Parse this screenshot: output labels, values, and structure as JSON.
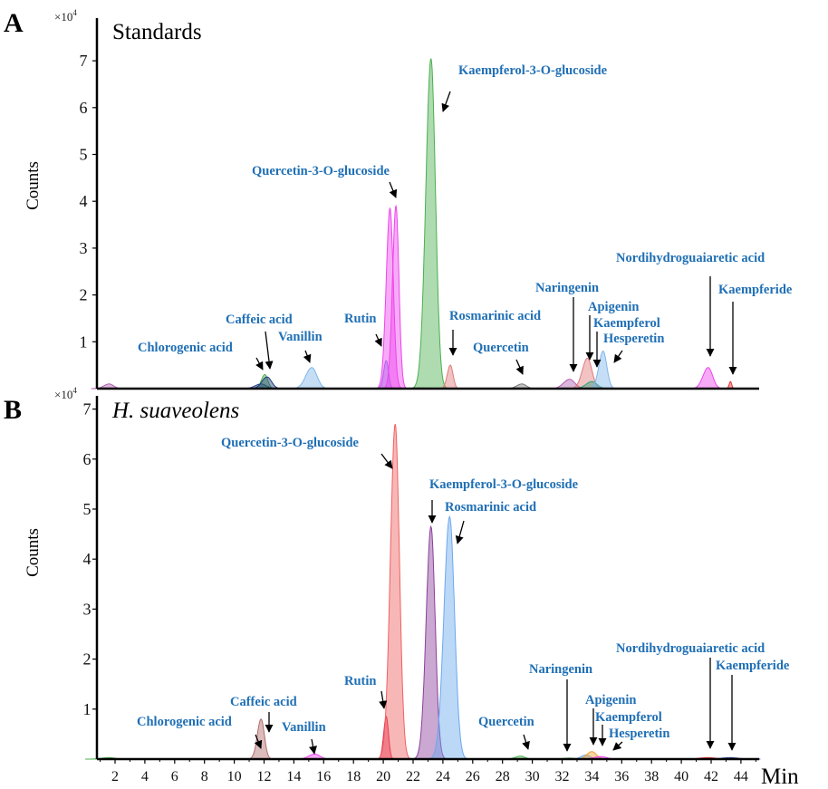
{
  "chart_data": [
    {
      "type": "area",
      "panel_letter": "A",
      "title": "Standards",
      "ylabel": "Counts",
      "yunit": "×10",
      "yunit_exp": "4",
      "xlabel": "Min",
      "xlim": [
        0.7,
        45.3
      ],
      "ylim": [
        0,
        7.6
      ],
      "yticks": [
        "1",
        "2",
        "3",
        "4",
        "5",
        "6",
        "7"
      ],
      "xticks": [
        "2",
        "4",
        "6",
        "8",
        "10",
        "12",
        "14",
        "16",
        "18",
        "20",
        "22",
        "24",
        "26",
        "28",
        "30",
        "32",
        "34",
        "36",
        "38",
        "40",
        "42",
        "44"
      ],
      "peaks": [
        {
          "rt": 1.6,
          "height": 0.1,
          "width": 0.3,
          "color": "#b05fb0"
        },
        {
          "rt": 11.8,
          "height": 0.1,
          "width": 0.35,
          "color": "#2a3f8f"
        },
        {
          "rt": 12.05,
          "height": 0.3,
          "width": 0.2,
          "color": "#4caf50"
        },
        {
          "rt": 12.2,
          "height": 0.25,
          "width": 0.3,
          "color": "#1f3a7a"
        },
        {
          "rt": 15.2,
          "height": 0.45,
          "width": 0.35,
          "color": "#7fb5ea"
        },
        {
          "rt": 20.2,
          "height": 0.6,
          "width": 0.15,
          "color": "#7b7bea"
        },
        {
          "rt": 20.45,
          "height": 3.85,
          "width": 0.22,
          "color": "#ee44ee"
        },
        {
          "rt": 20.85,
          "height": 3.9,
          "width": 0.2,
          "color": "#ee44ee"
        },
        {
          "rt": 23.2,
          "height": 7.05,
          "width": 0.3,
          "color": "#4caf50"
        },
        {
          "rt": 24.5,
          "height": 0.5,
          "width": 0.18,
          "color": "#e07b7b"
        },
        {
          "rt": 29.3,
          "height": 0.1,
          "width": 0.3,
          "color": "#777777"
        },
        {
          "rt": 32.5,
          "height": 0.2,
          "width": 0.35,
          "color": "#b05fb0"
        },
        {
          "rt": 33.7,
          "height": 0.65,
          "width": 0.3,
          "color": "#e07b7b"
        },
        {
          "rt": 34.0,
          "height": 0.15,
          "width": 0.35,
          "color": "#2e9e7a"
        },
        {
          "rt": 34.75,
          "height": 0.8,
          "width": 0.25,
          "color": "#7fb5ea"
        },
        {
          "rt": 41.8,
          "height": 0.45,
          "width": 0.3,
          "color": "#ee44ee"
        },
        {
          "rt": 43.3,
          "height": 0.15,
          "width": 0.08,
          "color": "#e83030"
        }
      ],
      "annotations": [
        "Kaempferol-3-O-glucoside",
        "Quercetin-3-O-glucoside",
        "Rutin",
        "Caffeic acid",
        "Chlorogenic acid",
        "Vanillin",
        "Rosmarinic acid",
        "Quercetin",
        "Naringenin",
        "Apigenin",
        "Kaempferol",
        "Hesperetin",
        "Nordihydroguaiaretic acid",
        "Kaempferide"
      ]
    },
    {
      "type": "area",
      "panel_letter": "B",
      "title": "H. suaveolens",
      "ylabel": "Counts",
      "yunit": "×10",
      "yunit_exp": "4",
      "xlabel": "Min",
      "xlim": [
        0.7,
        45.3
      ],
      "ylim": [
        0,
        7.2
      ],
      "yticks": [
        "1",
        "2",
        "3",
        "4",
        "5",
        "6",
        "7"
      ],
      "xticks": [
        "2",
        "4",
        "6",
        "8",
        "10",
        "12",
        "14",
        "16",
        "18",
        "20",
        "22",
        "24",
        "26",
        "28",
        "30",
        "32",
        "34",
        "36",
        "38",
        "40",
        "42",
        "44"
      ],
      "peaks": [
        {
          "rt": 1.6,
          "height": 0.03,
          "width": 0.4,
          "color": "#4caf50"
        },
        {
          "rt": 11.8,
          "height": 0.8,
          "width": 0.22,
          "color": "#b06a6a"
        },
        {
          "rt": 15.4,
          "height": 0.1,
          "width": 0.35,
          "color": "#ee44ee"
        },
        {
          "rt": 20.2,
          "height": 0.85,
          "width": 0.15,
          "color": "#e0204a"
        },
        {
          "rt": 20.8,
          "height": 6.7,
          "width": 0.28,
          "color": "#f06060"
        },
        {
          "rt": 23.2,
          "height": 4.65,
          "width": 0.28,
          "color": "#8a3f9a"
        },
        {
          "rt": 24.45,
          "height": 4.85,
          "width": 0.33,
          "color": "#6aa8ee"
        },
        {
          "rt": 29.2,
          "height": 0.06,
          "width": 0.3,
          "color": "#4caf50"
        },
        {
          "rt": 32.5,
          "height": 0.02,
          "width": 0.4,
          "color": "#4caf50"
        },
        {
          "rt": 33.6,
          "height": 0.08,
          "width": 0.3,
          "color": "#6aa8ee"
        },
        {
          "rt": 34.0,
          "height": 0.15,
          "width": 0.3,
          "color": "#f0a030"
        },
        {
          "rt": 34.6,
          "height": 0.05,
          "width": 0.4,
          "color": "#ee44ee"
        },
        {
          "rt": 41.8,
          "height": 0.03,
          "width": 0.5,
          "color": "#e83030"
        },
        {
          "rt": 43.3,
          "height": 0.03,
          "width": 0.5,
          "color": "#2a3f8f"
        }
      ],
      "annotations": [
        "Quercetin-3-O-glucoside",
        "Kaempferol-3-O-glucoside",
        "Rosmarinic acid",
        "Rutin",
        "Caffeic acid",
        "Chlorogenic acid",
        "Vanillin",
        "Quercetin",
        "Naringenin",
        "Apigenin",
        "Kaempferol",
        "Hesperetin",
        "Nordihydroguaiaretic acid",
        "Kaempferide"
      ]
    }
  ],
  "label_color": "#1f6fb5"
}
